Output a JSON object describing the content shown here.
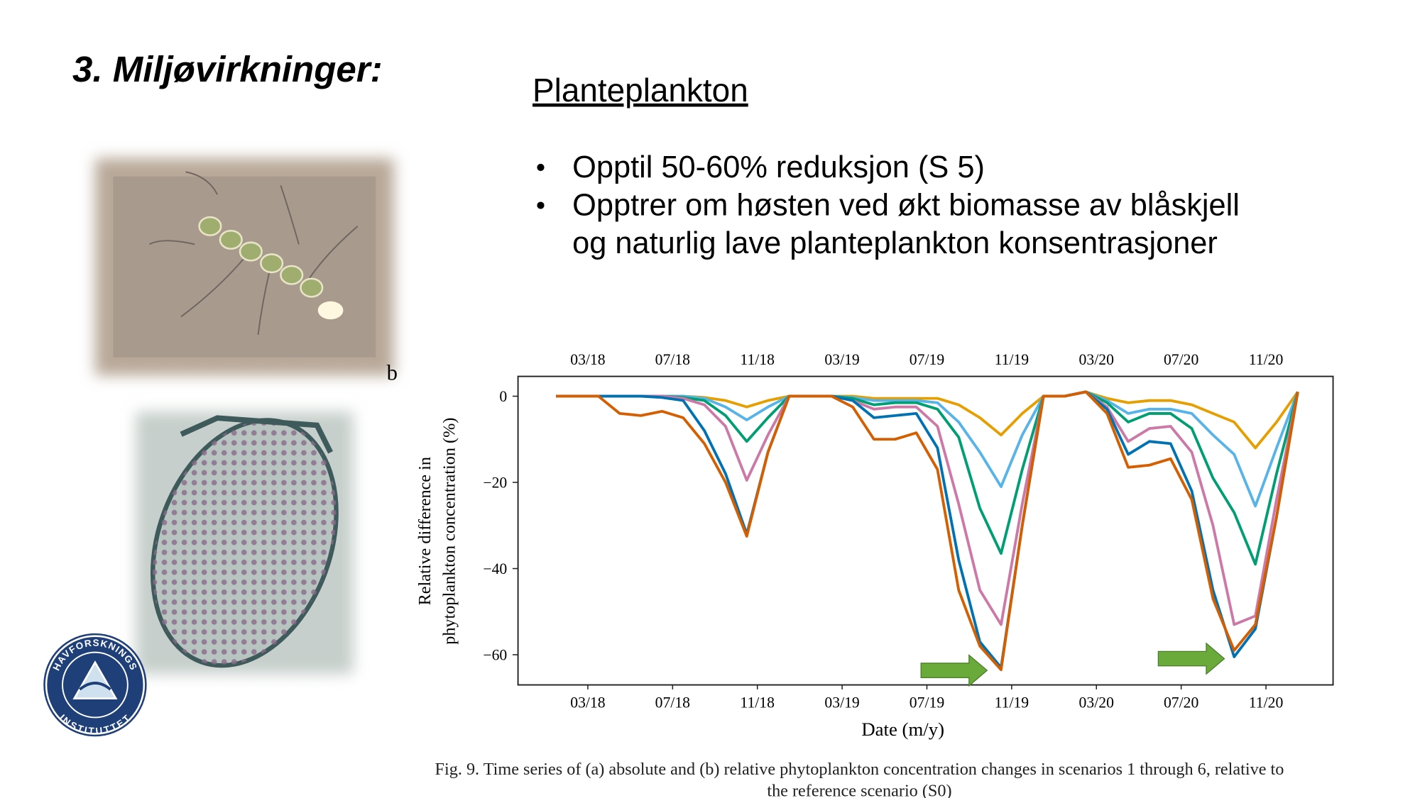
{
  "slide": {
    "title": "3. Miljøvirkninger:",
    "heading": "Planteplankton",
    "bullets": [
      [
        "Opptil 50-60% reduksjon (S 5)"
      ],
      [
        "Opptrer om høsten ved økt biomasse av blåskjell",
        "og naturlig lave planteplankton konsentrasjoner"
      ]
    ],
    "photo_label": "b",
    "logo": {
      "top": "HAVFORSKNINGS",
      "bottom": "INSTITUTTET"
    }
  },
  "chart_data": {
    "type": "line",
    "xlabel": "Date (m/y)",
    "ylabel": [
      "Relative difference in",
      "phytoplankton concentration (%)"
    ],
    "categories": [
      null,
      null,
      "03/18",
      null,
      null,
      null,
      "07/18",
      null,
      null,
      null,
      "11/18",
      null,
      null,
      null,
      "03/19",
      null,
      null,
      null,
      "07/19",
      null,
      null,
      null,
      "11/19",
      null,
      null,
      null,
      "03/20",
      null,
      null,
      null,
      "07/20",
      null,
      null,
      null,
      "11/20",
      null
    ],
    "ylim": [
      -67,
      4.6
    ],
    "yticks": [
      0,
      -20,
      -40,
      -60
    ],
    "grid": false,
    "series": [
      {
        "color": "#e69f00",
        "values": [
          0,
          0,
          0,
          0,
          0,
          0,
          0,
          -0.3,
          -1,
          -2.5,
          -1,
          0,
          0,
          0,
          0,
          -0.5,
          -0.5,
          -0.5,
          -0.5,
          -2,
          -5,
          -9,
          -4,
          0,
          0,
          1,
          -0.5,
          -1.5,
          -1,
          -1,
          -2,
          -4,
          -6,
          -12,
          -6,
          1
        ]
      },
      {
        "color": "#56b4e9",
        "values": [
          0,
          0,
          0,
          0,
          0,
          0,
          0,
          -0.5,
          -2.5,
          -5.5,
          -2.5,
          0,
          0,
          0,
          -0.3,
          -1,
          -1,
          -1,
          -1.5,
          -6,
          -13,
          -21,
          -9,
          0,
          0,
          1,
          -1,
          -4,
          -3,
          -3,
          -4,
          -9,
          -13.5,
          -25.5,
          -12,
          1
        ]
      },
      {
        "color": "#009e73",
        "values": [
          0,
          0,
          0,
          0,
          0,
          0,
          -0.3,
          -1,
          -4.5,
          -10.5,
          -5,
          0,
          0,
          0,
          -0.5,
          -2,
          -1.5,
          -1.5,
          -3,
          -9.5,
          -26,
          -36.5,
          -17,
          0,
          0,
          1,
          -1.5,
          -6,
          -4,
          -4,
          -7.5,
          -19,
          -27,
          -39,
          -18,
          1
        ]
      },
      {
        "color": "#cc79a7",
        "values": [
          0,
          0,
          0,
          0,
          0,
          0,
          -0.5,
          -2,
          -7,
          -19.5,
          -9,
          0,
          0,
          0,
          -1,
          -3,
          -2.5,
          -2.5,
          -7,
          -25,
          -45,
          -53,
          -25,
          0,
          0,
          1,
          -2.5,
          -10.5,
          -7.5,
          -7,
          -13,
          -30,
          -53,
          -51,
          -24,
          1
        ]
      },
      {
        "color": "#0072b2",
        "values": [
          0,
          0,
          0,
          0,
          0,
          -0.3,
          -1,
          -8,
          -18,
          -32,
          -13,
          0,
          0,
          0,
          -1,
          -5,
          -4.5,
          -4,
          -12,
          -38,
          -57,
          -63,
          -30,
          0,
          0,
          1,
          -3,
          -13.5,
          -10.5,
          -11,
          -22,
          -45,
          -60.5,
          -54,
          -28,
          1
        ]
      },
      {
        "color": "#d55e00",
        "values": [
          0,
          0,
          0,
          -4,
          -4.5,
          -3.5,
          -5,
          -11,
          -20,
          -32.5,
          -13,
          0,
          0,
          0,
          -2.5,
          -10,
          -10,
          -8.5,
          -17,
          -45,
          -58,
          -63.5,
          -30,
          0,
          0,
          1,
          -4,
          -16.5,
          -16,
          -14.5,
          -24,
          -47,
          -59,
          -53,
          -28,
          1
        ]
      }
    ]
  },
  "caption": [
    "Fig. 9. Time series of (a) absolute and (b) relative phytoplankton concentration changes in scenarios 1 through 6, relative to",
    "the reference scenario (S0)"
  ]
}
